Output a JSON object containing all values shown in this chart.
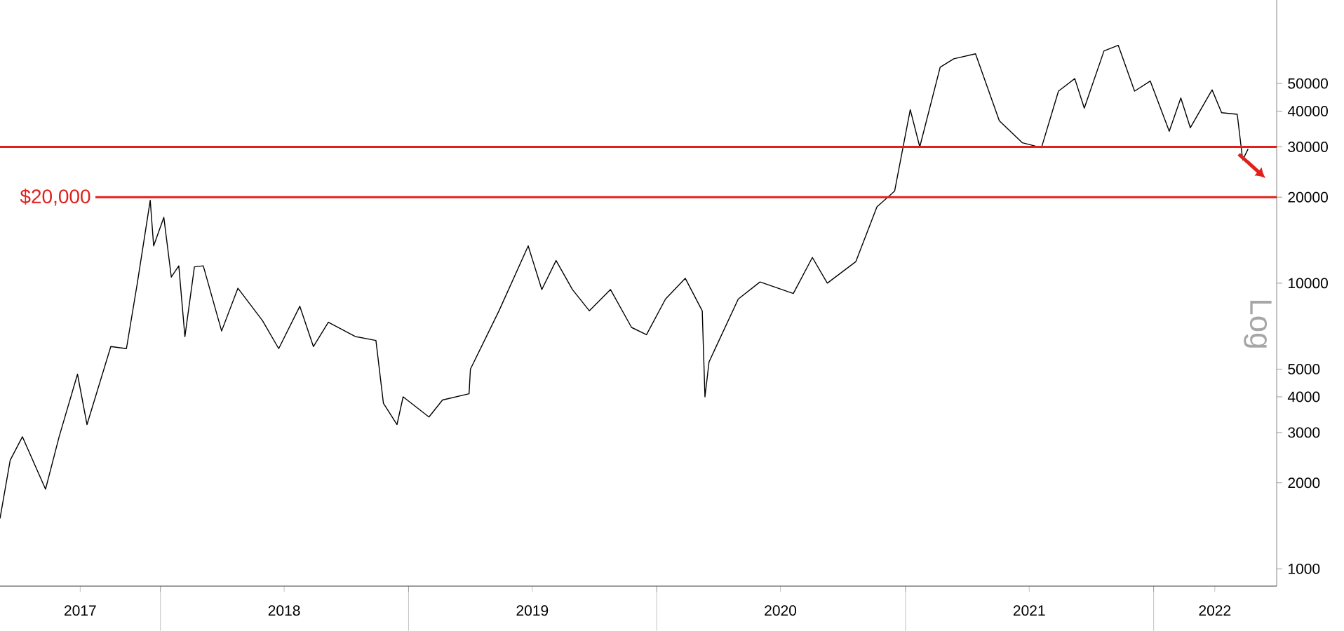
{
  "chart_data": {
    "type": "line",
    "ylabel": "Log",
    "log": "y",
    "line_style": "solid",
    "marker": "none",
    "color": "#000000",
    "xlim": [
      "2017-05-10",
      "2022-07-01"
    ],
    "xticks": [
      {
        "value": "2017-09-05",
        "label": "2017"
      },
      {
        "value": "2018-01-01",
        "label": null
      },
      {
        "value": "2018-07-02",
        "label": "2018"
      },
      {
        "value": "2019-01-01",
        "label": null
      },
      {
        "value": "2019-07-02",
        "label": "2019"
      },
      {
        "value": "2020-01-01",
        "label": null
      },
      {
        "value": "2020-07-01",
        "label": "2020"
      },
      {
        "value": "2021-01-01",
        "label": null
      },
      {
        "value": "2021-07-02",
        "label": "2021"
      },
      {
        "value": "2022-01-01",
        "label": null
      },
      {
        "value": "2022-04-01",
        "label": "2022"
      }
    ],
    "ylim": [
      870,
      98000
    ],
    "yticks": [
      1000,
      2000,
      3000,
      4000,
      5000,
      10000,
      20000,
      30000,
      40000,
      50000
    ],
    "x": [
      "2017-05-10",
      "2017-05-25",
      "2017-06-12",
      "2017-07-16",
      "2017-08-05",
      "2017-09-01",
      "2017-09-15",
      "2017-10-20",
      "2017-11-12",
      "2017-11-28",
      "2017-12-17",
      "2017-12-22",
      "2018-01-06",
      "2018-01-17",
      "2018-01-28",
      "2018-02-06",
      "2018-02-20",
      "2018-03-05",
      "2018-04-01",
      "2018-04-25",
      "2018-05-31",
      "2018-06-24",
      "2018-07-25",
      "2018-08-14",
      "2018-09-05",
      "2018-10-15",
      "2018-11-14",
      "2018-11-25",
      "2018-12-15",
      "2018-12-24",
      "2019-01-31",
      "2019-02-20",
      "2019-03-31",
      "2019-04-02",
      "2019-05-14",
      "2019-06-26",
      "2019-07-16",
      "2019-08-06",
      "2019-08-30",
      "2019-09-24",
      "2019-10-25",
      "2019-11-25",
      "2019-12-17",
      "2020-01-14",
      "2020-02-12",
      "2020-03-08",
      "2020-03-12",
      "2020-03-18",
      "2020-04-30",
      "2020-06-01",
      "2020-07-20",
      "2020-08-17",
      "2020-09-08",
      "2020-10-20",
      "2020-11-20",
      "2020-12-16",
      "2021-01-08",
      "2021-01-22",
      "2021-02-21",
      "2021-03-13",
      "2021-04-14",
      "2021-05-19",
      "2021-06-22",
      "2021-07-20",
      "2021-08-14",
      "2021-09-07",
      "2021-09-21",
      "2021-10-20",
      "2021-11-10",
      "2021-12-04",
      "2021-12-27",
      "2022-01-24",
      "2022-02-10",
      "2022-02-24",
      "2022-03-28",
      "2022-04-11",
      "2022-05-04",
      "2022-05-12",
      "2022-05-20"
    ],
    "values": [
      1500,
      2400,
      2900,
      1900,
      2900,
      4800,
      3200,
      6000,
      5900,
      10000,
      19500,
      13500,
      17000,
      10500,
      11500,
      6500,
      11400,
      11500,
      6800,
      9600,
      7400,
      5900,
      8300,
      6000,
      7300,
      6500,
      6300,
      3800,
      3200,
      4000,
      3400,
      3900,
      4100,
      5000,
      8000,
      13500,
      9500,
      12000,
      9500,
      8000,
      9500,
      7000,
      6600,
      8800,
      10400,
      8000,
      4000,
      5300,
      8800,
      10100,
      9200,
      12300,
      10000,
      11900,
      18500,
      21000,
      40500,
      30000,
      57000,
      61000,
      63500,
      37000,
      31000,
      29800,
      47000,
      52000,
      41000,
      65000,
      68000,
      47000,
      51000,
      34000,
      44500,
      35000,
      47500,
      39500,
      39000,
      27000,
      29500
    ],
    "ref_lines": [
      {
        "axis": "y",
        "value": 20000,
        "label": "$20,000",
        "color": "#e0201b"
      },
      {
        "axis": "y",
        "value": 30000,
        "color": "#e0201b"
      }
    ]
  }
}
